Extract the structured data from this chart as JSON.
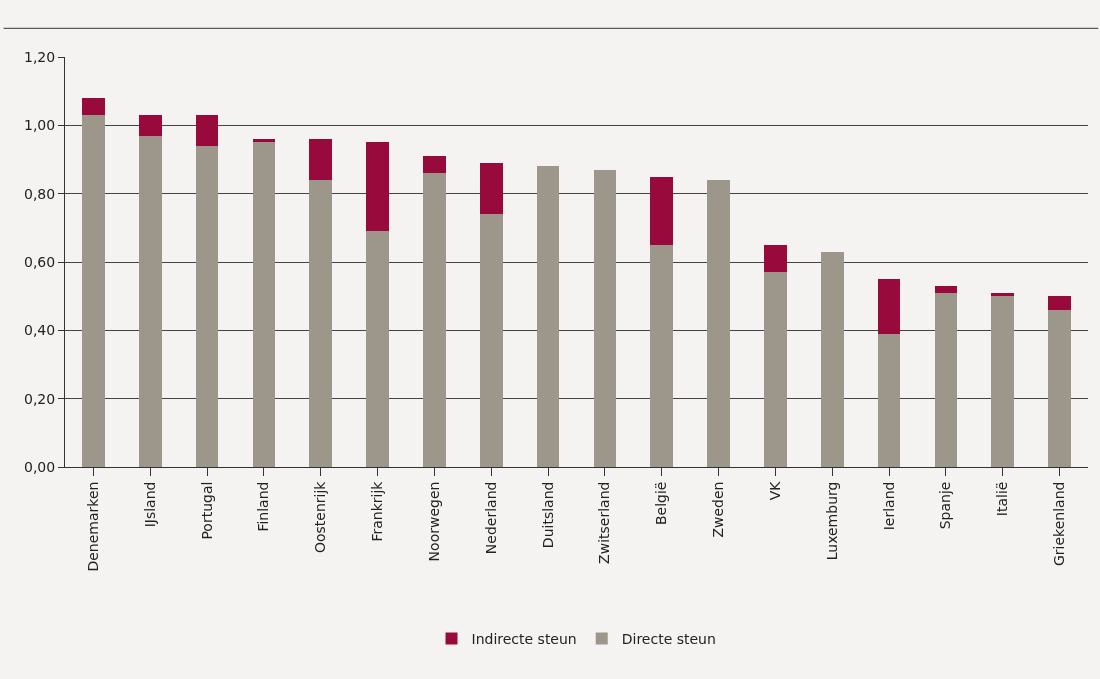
{
  "chart_data": {
    "type": "bar",
    "stacked": true,
    "categories": [
      "Denemarken",
      "IJsland",
      "Portugal",
      "Finland",
      "Oostenrijk",
      "Frankrijk",
      "Noorwegen",
      "Nederland",
      "Duitsland",
      "Zwitserland",
      "België",
      "Zweden",
      "VK",
      "Luxemburg",
      "Ierland",
      "Spanje",
      "Italië",
      "Griekenland"
    ],
    "series": [
      {
        "name": "Directe steun",
        "color": "#9c968b",
        "values": [
          1.03,
          0.97,
          0.94,
          0.95,
          0.84,
          0.69,
          0.86,
          0.74,
          0.88,
          0.87,
          0.65,
          0.84,
          0.57,
          0.63,
          0.39,
          0.51,
          0.5,
          0.46
        ]
      },
      {
        "name": "Indirecte steun",
        "color": "#990a3c",
        "values": [
          0.05,
          0.06,
          0.09,
          0.01,
          0.12,
          0.26,
          0.05,
          0.15,
          0,
          0,
          0.2,
          0,
          0.08,
          0,
          0.16,
          0.02,
          0.01,
          0.04
        ]
      }
    ],
    "ylim": [
      0,
      1.2
    ],
    "yticks": [
      {
        "value": 0,
        "label": "0,00"
      },
      {
        "value": 0.2,
        "label": "0,20"
      },
      {
        "value": 0.4,
        "label": "0,40"
      },
      {
        "value": 0.6,
        "label": "0,60"
      },
      {
        "value": 0.8,
        "label": "0,80"
      },
      {
        "value": 1,
        "label": "1,00"
      },
      {
        "value": 1.2,
        "label": "1,20"
      }
    ],
    "grid": "y",
    "legend": "bottom"
  }
}
